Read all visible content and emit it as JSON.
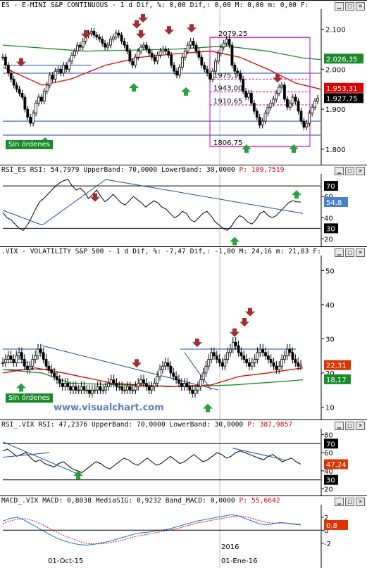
{
  "panels": [
    {
      "id": "es",
      "title": "ES - E-MINI S&P CONTINUOUS - 1 d Dif, %: 0,00 Dif,: 0,00 M: 0,00 m: 0,00 F:",
      "type": "candlestick",
      "yticks": [
        {
          "v": 1800,
          "label": "1.800"
        },
        {
          "v": 1900,
          "label": "1.900"
        },
        {
          "v": 2000,
          "label": "2.000"
        },
        {
          "v": 2100,
          "label": "2.100"
        }
      ],
      "price_boxes": [
        {
          "label": "2.026,35",
          "value": 2026.35,
          "color": "#1a8a2a"
        },
        {
          "label": "1.953,31",
          "value": 1953.31,
          "color": "#dd0000"
        },
        {
          "label": "1.927,75",
          "value": 1927.75,
          "color": "#000000"
        }
      ],
      "level_labels": [
        {
          "label": "2079,25",
          "value": 2079.25
        },
        {
          "label": "1975,16",
          "value": 1975.16
        },
        {
          "label": "1943,00",
          "value": 1943.0
        },
        {
          "label": "1910,65",
          "value": 1910.65
        },
        {
          "label": "1806,75",
          "value": 1806.75
        }
      ],
      "badge": "Sin órdenes",
      "ylim": [
        1770,
        2150
      ]
    },
    {
      "id": "rsi_es",
      "title_main": "RSI_ES RSI: 54,7979 UpperBand: 70,0000 LowerBand: 30,0000",
      "title_red": "P: 109,7519",
      "type": "line",
      "yticks": [
        {
          "v": 20,
          "label": "20"
        },
        {
          "v": 40,
          "label": "40"
        },
        {
          "v": 60,
          "label": "60"
        }
      ],
      "bands": [
        {
          "label": "70",
          "value": 70
        },
        {
          "label": "30",
          "value": 30
        }
      ],
      "current": {
        "label": "54,8",
        "value": 54.8
      },
      "ylim": [
        15,
        80
      ]
    },
    {
      "id": "vix",
      "title": ".VIX - VOLATILITY S&P 500 - 1 d Dif, %: -7,47 Dif,: -1,80 M: 24,16 m: 21,83 F:",
      "type": "candlestick",
      "yticks": [
        {
          "v": 10,
          "label": "10"
        },
        {
          "v": 20,
          "label": "20"
        },
        {
          "v": 30,
          "label": "30"
        },
        {
          "v": 40,
          "label": "40"
        },
        {
          "v": 50,
          "label": "50"
        }
      ],
      "price_boxes": [
        {
          "label": "22,31",
          "value": 22.31,
          "color": "#dd3300"
        },
        {
          "label": "18,17",
          "value": 18.17,
          "color": "#1a8a2a"
        }
      ],
      "badge": "Sin órdenes",
      "watermark": "www.visualchart.com",
      "ylim": [
        7,
        54
      ]
    },
    {
      "id": "rsi_vix",
      "title_main": "RSI_.VIX RSI: 47,2376 UpperBand: 70,0000 LowerBand: 30,0000",
      "title_red": "P: 387,9857",
      "type": "line",
      "yticks": [
        {
          "v": 20,
          "label": "20"
        },
        {
          "v": 40,
          "label": "40"
        },
        {
          "v": 60,
          "label": "60"
        },
        {
          "v": 80,
          "label": "80"
        }
      ],
      "bands": [
        {
          "label": "70",
          "value": 70
        },
        {
          "label": "30",
          "value": 30
        }
      ],
      "current": {
        "label": "47,24",
        "value": 47.24
      },
      "ylim": [
        15,
        85
      ]
    },
    {
      "id": "macd_vix",
      "title_main": "MACD_.VIX MACD: 0,8038 MediaSIG: 0,9232 Band_MACD: 0,0000",
      "title_red": "P: 55,6642",
      "type": "line",
      "yticks": [
        {
          "v": -2,
          "label": "-2"
        },
        {
          "v": 0,
          "label": "0"
        },
        {
          "v": 2,
          "label": "2"
        }
      ],
      "current": {
        "label": "0,8",
        "value": 0.8
      },
      "ylim": [
        -3,
        3.5
      ]
    }
  ],
  "xaxis": {
    "labels": [
      {
        "label": "01-Oct-15",
        "index": 22
      },
      {
        "label": "01-Ene-16",
        "index": 82
      }
    ],
    "year_label": {
      "label": "2016",
      "index": 82
    }
  },
  "chart_data": [
    {
      "type": "candlestick",
      "title": "ES - E-MINI S&P CONTINUOUS",
      "note": "approximate daily closes read from chart",
      "y_axis_ticks": [
        1800,
        1900,
        2000,
        2100
      ],
      "close": [
        2030,
        2010,
        1990,
        1975,
        1960,
        1950,
        1940,
        1930,
        1900,
        1880,
        1865,
        1890,
        1915,
        1930,
        1920,
        1945,
        1960,
        1985,
        1975,
        1995,
        2000,
        1990,
        2010,
        2000,
        2020,
        2035,
        2045,
        2060,
        2055,
        2070,
        2085,
        2090,
        2095,
        2085,
        2080,
        2075,
        2065,
        2055,
        2060,
        2075,
        2080,
        2090,
        2085,
        2070,
        2060,
        2045,
        2020,
        2010,
        2030,
        2045,
        2055,
        2060,
        2050,
        2040,
        2030,
        2020,
        2035,
        2045,
        2050,
        2045,
        2035,
        2010,
        1995,
        1985,
        2005,
        2030,
        2045,
        2060,
        2070,
        2060,
        2045,
        2030,
        2010,
        2000,
        1990,
        1975,
        1995,
        2020,
        2040,
        2055,
        2065,
        2075,
        2060,
        2010,
        1995,
        1990,
        1975,
        1945,
        1930,
        1940,
        1915,
        1895,
        1880,
        1860,
        1870,
        1890,
        1905,
        1915,
        1925,
        1940,
        1955,
        1960,
        1925,
        1905,
        1915,
        1930,
        1920,
        1895,
        1870,
        1855,
        1865,
        1890,
        1905,
        1920,
        1927.75
      ],
      "levels": {
        "2079,25": 2079.25,
        "1975,16": 1975.16,
        "1943,00": 1943.0,
        "1910,65": 1910.65,
        "1806,75": 1806.75
      }
    },
    {
      "type": "line",
      "title": "RSI_ES",
      "values": [
        45,
        40,
        38,
        34,
        30,
        28,
        33,
        40,
        48,
        55,
        58,
        62,
        66,
        70,
        73,
        75,
        76,
        70,
        66,
        68,
        64,
        58,
        62,
        66,
        60,
        55,
        58,
        62,
        58,
        54,
        52,
        56,
        60,
        57,
        54,
        50,
        53,
        56,
        54,
        50,
        48,
        44,
        40,
        42,
        46,
        44,
        38,
        36,
        40,
        44,
        46,
        42,
        36,
        33,
        30,
        28,
        32,
        38,
        42,
        40,
        36,
        34,
        38,
        44,
        46,
        42,
        40,
        42,
        46,
        50,
        54,
        56,
        55,
        54.8
      ],
      "bands": [
        70,
        30
      ]
    },
    {
      "type": "candlestick",
      "title": ".VIX - VOLATILITY S&P 500",
      "y_axis_ticks": [
        10,
        20,
        30,
        40,
        50
      ],
      "close": [
        23,
        24,
        25,
        24,
        23,
        25,
        26,
        24,
        22,
        21,
        22,
        24,
        25,
        27,
        26,
        24,
        22,
        21,
        20,
        19,
        18,
        17,
        16,
        17,
        16,
        15,
        16,
        15,
        15,
        16,
        15,
        15,
        14,
        15,
        15,
        16,
        15,
        15,
        16,
        17,
        18,
        17,
        16,
        16,
        15,
        15,
        16,
        15,
        15,
        16,
        17,
        18,
        17,
        16,
        15,
        16,
        17,
        19,
        21,
        22,
        23,
        22,
        20,
        19,
        18,
        17,
        16,
        17,
        16,
        15,
        14,
        15,
        16,
        18,
        20,
        22,
        24,
        26,
        25,
        24,
        23,
        22,
        24,
        26,
        27,
        29,
        28,
        26,
        25,
        24,
        23,
        22,
        23,
        24,
        26,
        27,
        26,
        25,
        24,
        23,
        22,
        21,
        22,
        24,
        25,
        27,
        26,
        24,
        23,
        22,
        22.31
      ]
    },
    {
      "type": "line",
      "title": "RSI_.VIX",
      "values": [
        62,
        64,
        60,
        56,
        58,
        60,
        54,
        50,
        52,
        48,
        46,
        44,
        48,
        50,
        46,
        42,
        40,
        38,
        42,
        46,
        50,
        48,
        44,
        42,
        46,
        50,
        54,
        52,
        48,
        46,
        50,
        54,
        50,
        46,
        48,
        52,
        56,
        52,
        48,
        50,
        54,
        58,
        54,
        50,
        52,
        56,
        60,
        58,
        54,
        56,
        60,
        62,
        60,
        58,
        56,
        54,
        52,
        56,
        58,
        54,
        50,
        52,
        54,
        50,
        47.24
      ],
      "bands": [
        70,
        30
      ]
    },
    {
      "type": "line",
      "title": "MACD_.VIX",
      "series": [
        {
          "name": "MACD",
          "values": [
            1.4,
            1.8,
            2.0,
            1.6,
            1.0,
            0.4,
            -0.2,
            -0.8,
            -1.3,
            -1.7,
            -2.0,
            -2.2,
            -2.3,
            -2.2,
            -2.0,
            -1.8,
            -1.5,
            -1.2,
            -0.9,
            -0.6,
            -0.4,
            -0.3,
            -0.1,
            0.0,
            0.2,
            0.5,
            0.8,
            1.1,
            1.4,
            1.6,
            1.8,
            2.0,
            2.2,
            2.4,
            2.2,
            1.8,
            1.4,
            1.0,
            0.8,
            1.0,
            1.2,
            1.1,
            0.9,
            0.8
          ]
        },
        {
          "name": "MediaSIG",
          "values": [
            1.0,
            1.4,
            1.7,
            1.8,
            1.6,
            1.2,
            0.7,
            0.1,
            -0.4,
            -0.9,
            -1.3,
            -1.7,
            -2.0,
            -2.1,
            -2.1,
            -2.0,
            -1.8,
            -1.6,
            -1.3,
            -1.0,
            -0.8,
            -0.6,
            -0.4,
            -0.2,
            0.0,
            0.2,
            0.5,
            0.8,
            1.1,
            1.3,
            1.5,
            1.7,
            1.9,
            2.1,
            2.2,
            2.1,
            1.8,
            1.5,
            1.2,
            1.1,
            1.1,
            1.1,
            1.0,
            0.92
          ]
        }
      ]
    }
  ]
}
